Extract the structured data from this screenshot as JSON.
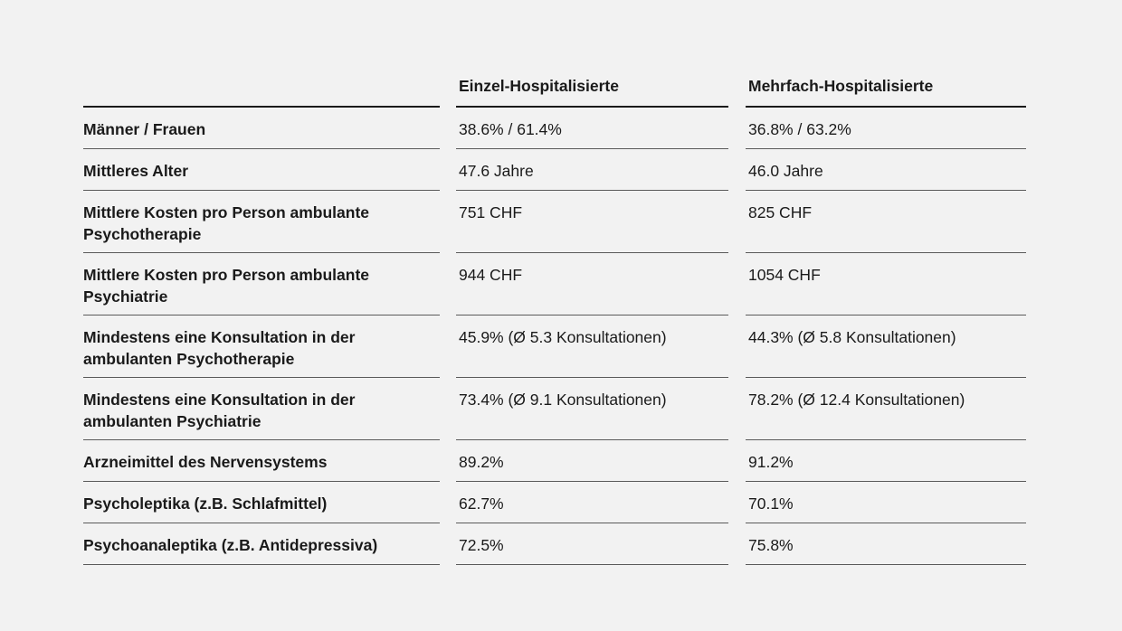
{
  "table": {
    "columns": [
      "",
      "Einzel-Hospitalisierte",
      "Mehrfach-Hospitalisierte"
    ],
    "rows": [
      {
        "label": "Männer / Frauen",
        "einzel": "38.6% / 61.4%",
        "mehrfach": "36.8% / 63.2%"
      },
      {
        "label": "Mittleres Alter",
        "einzel": "47.6 Jahre",
        "mehrfach": "46.0 Jahre"
      },
      {
        "label": "Mittlere Kosten pro Person ambulante Psychotherapie",
        "einzel": "751 CHF",
        "mehrfach": "825 CHF"
      },
      {
        "label": "Mittlere Kosten pro Person ambulante Psychiatrie",
        "einzel": "944 CHF",
        "mehrfach": "1054 CHF"
      },
      {
        "label": "Mindestens eine Konsultation in der ambulanten Psychotherapie",
        "einzel": "45.9% (Ø 5.3 Konsultationen)",
        "mehrfach": "44.3% (Ø 5.8 Konsultationen)"
      },
      {
        "label": "Mindestens eine Konsultation in der ambulanten Psychiatrie",
        "einzel": "73.4% (Ø 9.1 Konsultationen)",
        "mehrfach": "78.2% (Ø 12.4 Konsultationen)"
      },
      {
        "label": "Arzneimittel des Nervensystems",
        "einzel": "89.2%",
        "mehrfach": "91.2%"
      },
      {
        "label": "Psycholeptika (z.B. Schlafmittel)",
        "einzel": "62.7%",
        "mehrfach": "70.1%"
      },
      {
        "label": "Psychoanaleptika (z.B. Antidepressiva)",
        "einzel": "72.5%",
        "mehrfach": "75.8%"
      }
    ]
  }
}
